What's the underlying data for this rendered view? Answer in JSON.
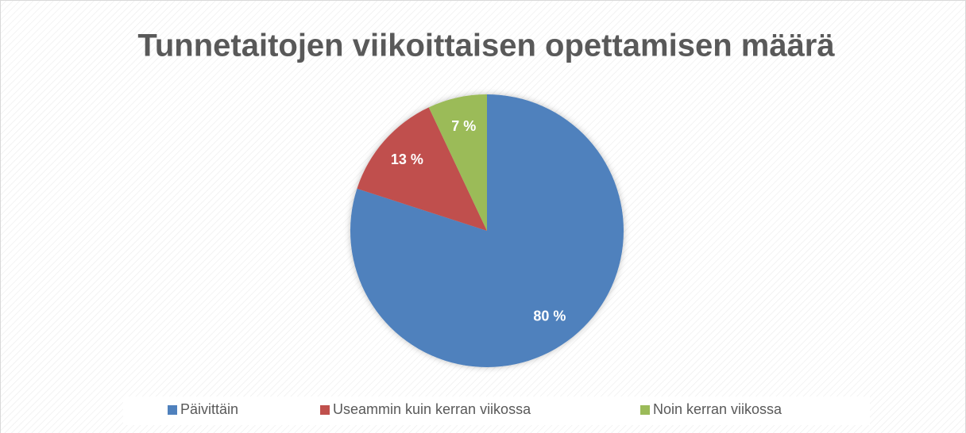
{
  "chart_data": {
    "type": "pie",
    "title": "Tunnetaitojen viikoittaisen opettamisen määrä",
    "categories": [
      "Päivittäin",
      "Useammin kuin kerran viikossa",
      "Noin kerran viikossa"
    ],
    "values": [
      80,
      13,
      7
    ],
    "value_labels": [
      "80 %",
      "13 %",
      "7 %"
    ],
    "colors": [
      "#4f81bd",
      "#c0504d",
      "#9bbb59"
    ],
    "legend": "bottom"
  }
}
